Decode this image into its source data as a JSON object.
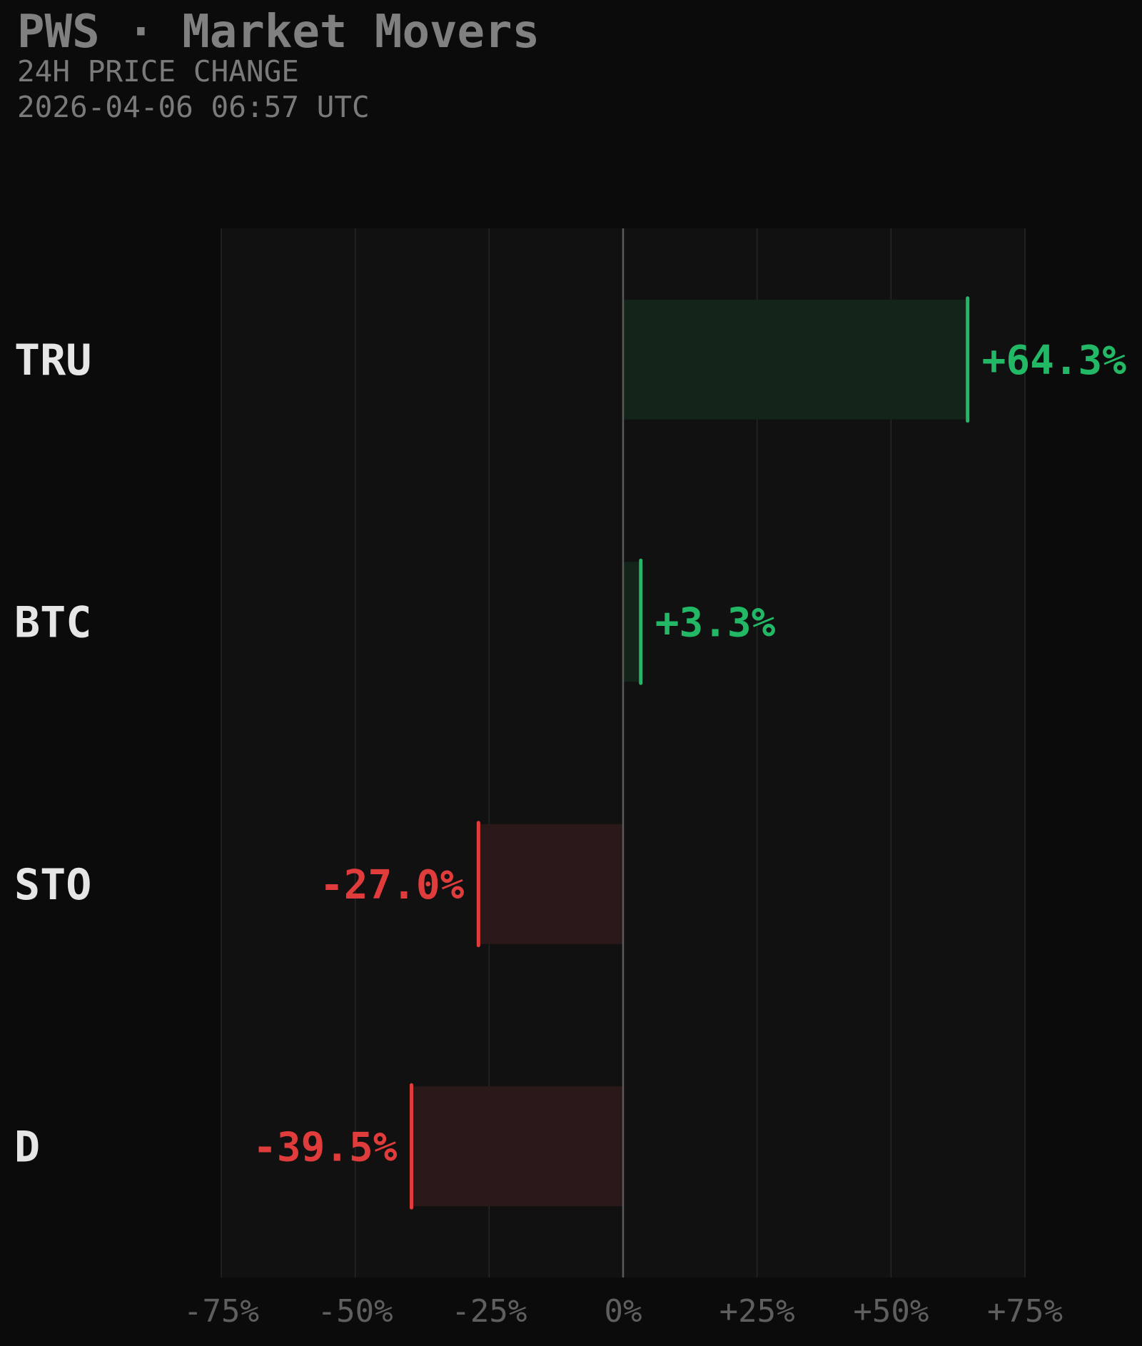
{
  "header": {
    "title": "PWS · Market Movers",
    "subtitle": "24H PRICE CHANGE",
    "timestamp": "2026-04-06 06:57 UTC"
  },
  "chart_data": {
    "type": "bar",
    "orientation": "horizontal",
    "categories": [
      "TRU",
      "BTC",
      "STO",
      "D"
    ],
    "values": [
      64.3,
      3.3,
      -27.0,
      -39.5
    ],
    "value_labels": [
      "+64.3%",
      "+3.3%",
      "-27.0%",
      "-39.5%"
    ],
    "xlim": [
      -75,
      75
    ],
    "xticks": [
      -75,
      -50,
      -25,
      0,
      25,
      50,
      75
    ],
    "xtick_labels": [
      "-75%",
      "-50%",
      "-25%",
      "0%",
      "+25%",
      "+50%",
      "+75%"
    ],
    "grid": "vertical",
    "colors": {
      "positive": "#22b866",
      "negative": "#e03c3c",
      "positive_fill": "#13241b",
      "negative_fill": "#2b1818",
      "ticker": "#e6e6e6",
      "tick_label": "#5f5f5f",
      "plot_bg": "#111111",
      "grid": "#262626",
      "zero_line": "#5a5a5a"
    }
  }
}
